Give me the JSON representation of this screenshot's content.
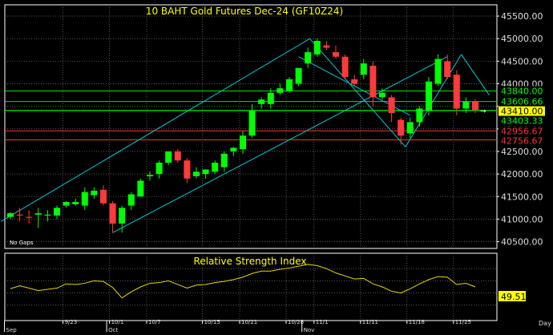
{
  "chart_data": [
    {
      "type": "candlestick",
      "title": "10  BAHT  Gold  Futures  Dec-24  (GF10Z24)",
      "note": "No  Gaps",
      "ylim": [
        40350,
        45750
      ],
      "y_ticks": [
        {
          "value": 45500,
          "label": "45500.00"
        },
        {
          "value": 45000,
          "label": "45000.00"
        },
        {
          "value": 44500,
          "label": "44500.00"
        },
        {
          "value": 44000,
          "label": "44000.00"
        },
        {
          "value": 43500,
          "label": "43500.00"
        },
        {
          "value": 43000,
          "label": "43000.00"
        },
        {
          "value": 42500,
          "label": "42500.00"
        },
        {
          "value": 42000,
          "label": "42000.00"
        },
        {
          "value": 41500,
          "label": "41500.00"
        },
        {
          "value": 41000,
          "label": "41000.00"
        },
        {
          "value": 40500,
          "label": "40500.00"
        }
      ],
      "x_ticks": [
        {
          "index": 6,
          "label": "9/23",
          "major": false
        },
        {
          "index": 11,
          "label": "10/1",
          "major": false
        },
        {
          "index": 15,
          "label": "10/7",
          "major": false
        },
        {
          "index": 21,
          "label": "10/15",
          "major": false
        },
        {
          "index": 25,
          "label": "10/21",
          "major": false
        },
        {
          "index": 30,
          "label": "10/28",
          "major": false
        },
        {
          "index": 33,
          "label": "11/1",
          "major": false
        },
        {
          "index": 38,
          "label": "11/11",
          "major": false
        },
        {
          "index": 43,
          "label": "11/18",
          "major": false
        },
        {
          "index": 48,
          "label": "11/25",
          "major": false
        }
      ],
      "month_labels": [
        {
          "index": -0.3,
          "label": "Sep"
        },
        {
          "index": 10.7,
          "label": "Oct"
        },
        {
          "index": 31.7,
          "label": "Nov"
        }
      ],
      "axis_corner_label": "Day",
      "candles": [
        {
          "o": 41050,
          "h": 41150,
          "l": 41000,
          "c": 41130
        },
        {
          "o": 41100,
          "h": 41250,
          "l": 40950,
          "c": 41080
        },
        {
          "o": 41050,
          "h": 41200,
          "l": 40900,
          "c": 41030
        },
        {
          "o": 41100,
          "h": 41250,
          "l": 40800,
          "c": 41130
        },
        {
          "o": 41080,
          "h": 41200,
          "l": 40950,
          "c": 41100
        },
        {
          "o": 41080,
          "h": 41300,
          "l": 41000,
          "c": 41250
        },
        {
          "o": 41300,
          "h": 41400,
          "l": 41250,
          "c": 41380
        },
        {
          "o": 41330,
          "h": 41450,
          "l": 41300,
          "c": 41380
        },
        {
          "o": 41300,
          "h": 41700,
          "l": 41200,
          "c": 41600
        },
        {
          "o": 41530,
          "h": 41700,
          "l": 41450,
          "c": 41630
        },
        {
          "o": 41650,
          "h": 41750,
          "l": 41300,
          "c": 41350
        },
        {
          "o": 41350,
          "h": 41400,
          "l": 40700,
          "c": 40900
        },
        {
          "o": 40900,
          "h": 41300,
          "l": 40700,
          "c": 41250
        },
        {
          "o": 41300,
          "h": 41600,
          "l": 41200,
          "c": 41550
        },
        {
          "o": 41500,
          "h": 41900,
          "l": 41500,
          "c": 41850
        },
        {
          "o": 41950,
          "h": 42050,
          "l": 41850,
          "c": 41980
        },
        {
          "o": 42000,
          "h": 42300,
          "l": 41900,
          "c": 42250
        },
        {
          "o": 42250,
          "h": 42500,
          "l": 42200,
          "c": 42500
        },
        {
          "o": 42500,
          "h": 42550,
          "l": 42250,
          "c": 42300
        },
        {
          "o": 42300,
          "h": 42350,
          "l": 41800,
          "c": 41900
        },
        {
          "o": 41950,
          "h": 42150,
          "l": 41900,
          "c": 42050
        },
        {
          "o": 42000,
          "h": 42100,
          "l": 41900,
          "c": 42100
        },
        {
          "o": 42050,
          "h": 42300,
          "l": 42000,
          "c": 42250
        },
        {
          "o": 42150,
          "h": 42500,
          "l": 42050,
          "c": 42450
        },
        {
          "o": 42500,
          "h": 42600,
          "l": 42400,
          "c": 42580
        },
        {
          "o": 42550,
          "h": 42950,
          "l": 42450,
          "c": 42850
        },
        {
          "o": 42850,
          "h": 43550,
          "l": 42800,
          "c": 43400
        },
        {
          "o": 43550,
          "h": 43700,
          "l": 43450,
          "c": 43650
        },
        {
          "o": 43550,
          "h": 43900,
          "l": 43450,
          "c": 43800
        },
        {
          "o": 43800,
          "h": 44000,
          "l": 43750,
          "c": 43900
        },
        {
          "o": 43850,
          "h": 44150,
          "l": 43800,
          "c": 44100
        },
        {
          "o": 44000,
          "h": 44350,
          "l": 43950,
          "c": 44350
        },
        {
          "o": 44450,
          "h": 44800,
          "l": 44350,
          "c": 44700
        },
        {
          "o": 44650,
          "h": 45000,
          "l": 44600,
          "c": 44950
        },
        {
          "o": 44850,
          "h": 44950,
          "l": 44750,
          "c": 44800
        },
        {
          "o": 44700,
          "h": 44850,
          "l": 44550,
          "c": 44600
        },
        {
          "o": 44600,
          "h": 44650,
          "l": 44100,
          "c": 44150
        },
        {
          "o": 44100,
          "h": 44200,
          "l": 43950,
          "c": 44000
        },
        {
          "o": 44200,
          "h": 44550,
          "l": 44100,
          "c": 44450
        },
        {
          "o": 44400,
          "h": 44500,
          "l": 43500,
          "c": 43700
        },
        {
          "o": 43700,
          "h": 43900,
          "l": 43650,
          "c": 43800
        },
        {
          "o": 43700,
          "h": 43750,
          "l": 43150,
          "c": 43350
        },
        {
          "o": 43200,
          "h": 43250,
          "l": 42650,
          "c": 42850
        },
        {
          "o": 42900,
          "h": 43250,
          "l": 42800,
          "c": 43150
        },
        {
          "o": 43150,
          "h": 43500,
          "l": 43050,
          "c": 43450
        },
        {
          "o": 43400,
          "h": 44150,
          "l": 43300,
          "c": 44050
        },
        {
          "o": 44000,
          "h": 44650,
          "l": 43950,
          "c": 44550
        },
        {
          "o": 44500,
          "h": 44650,
          "l": 44100,
          "c": 44150
        },
        {
          "o": 44200,
          "h": 44300,
          "l": 43300,
          "c": 43450
        },
        {
          "o": 43450,
          "h": 43700,
          "l": 43350,
          "c": 43600
        },
        {
          "o": 43600,
          "h": 43650,
          "l": 43350,
          "c": 43420
        }
      ],
      "horizontal_levels": [
        {
          "value": 43840.0,
          "label": "43840.00",
          "color": "#00e000",
          "label_bg": "#000000",
          "label_fg": "#00ff00"
        },
        {
          "value": 43606.66,
          "label": "43606.66",
          "color": "#00e000",
          "label_bg": "#000000",
          "label_fg": "#00ff00"
        },
        {
          "value": 43410.0,
          "label": "43410.00",
          "color": "#00e000",
          "label_bg": "#ffff00",
          "label_fg": "#000000"
        },
        {
          "value": 43403.33,
          "label": "43403.33",
          "color": "#00e000",
          "label_bg": "#000000",
          "label_fg": "#00ff00"
        },
        {
          "value": 42956.67,
          "label": "42956.67",
          "color": "#ff3030",
          "label_bg": "#000000",
          "label_fg": "#ff3030"
        },
        {
          "value": 42756.67,
          "label": "42756.67",
          "color": "#ff3030",
          "label_bg": "#000000",
          "label_fg": "#ff3030"
        }
      ],
      "trend_lines": [
        {
          "from": [
            -1,
            40950
          ],
          "to": [
            32.2,
            45000
          ]
        },
        {
          "from": [
            11,
            40700
          ],
          "to": [
            47,
            44600
          ]
        },
        {
          "from": [
            32.2,
            45000
          ],
          "to": [
            42.5,
            42600
          ]
        },
        {
          "from": [
            31,
            44600
          ],
          "to": [
            43,
            43300
          ]
        },
        {
          "from": [
            42.5,
            42600
          ],
          "to": [
            48.5,
            44650
          ]
        },
        {
          "from": [
            48.5,
            44650
          ],
          "to": [
            51.5,
            43750
          ]
        }
      ],
      "colors": {
        "up": "#00ff00",
        "down": "#ff3a3a",
        "trend": "#00c8d8",
        "grid": "#8c8c8c",
        "text": "#ffff00",
        "axis_text": "#dddddd"
      }
    },
    {
      "type": "line",
      "title": "Relative  Strength  Index",
      "ylim": [
        0,
        100
      ],
      "value_label": "49.51",
      "series": [
        {
          "values": [
            47,
            52,
            48,
            44,
            46,
            48,
            55,
            54,
            56,
            60,
            59,
            49,
            32,
            42,
            50,
            56,
            57,
            60,
            54,
            48,
            53,
            54,
            57,
            59,
            62,
            66,
            72,
            76,
            76,
            79,
            81,
            84,
            87,
            85,
            80,
            73,
            68,
            63,
            64,
            55,
            50,
            43,
            40,
            47,
            55,
            62,
            67,
            66,
            54,
            56,
            50
          ]
        }
      ],
      "colors": {
        "line": "#e8d800",
        "grid": "#8c8c8c",
        "text": "#ffff00"
      }
    }
  ]
}
